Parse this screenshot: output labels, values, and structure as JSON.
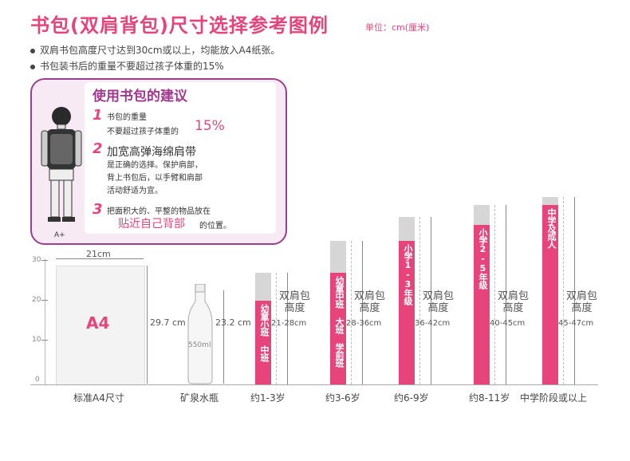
{
  "title": "书包(双肩背包)尺寸选择参考图例",
  "unit": "单位：cm(厘米)",
  "notes": [
    "双肩书包高度尺寸达到30cm或以上，均能放入A4纸张。",
    "书包装书后的重量不要超过孩子体重的15%"
  ],
  "tips": {
    "title": "使用书包的建议",
    "items": [
      {
        "num": "1",
        "line1": "书包的重量",
        "line2a": "不要超过孩子体重的",
        "line2b": "15%"
      },
      {
        "num": "2",
        "line1": "加宽高弹海绵肩带",
        "line2": "是正确的选择。保护肩部，",
        "line3": "背上书包后，以手臂和肩部",
        "line4": "活动舒适为宜。"
      },
      {
        "num": "3",
        "line1": "把面积大的、平整的物品放在",
        "line2a": "贴近自己背部",
        "line2b": "的位置。"
      }
    ],
    "figure_label": "A+"
  },
  "scale_labels": [
    "30",
    "20",
    "10",
    "0"
  ],
  "a4": {
    "label": "A4",
    "width": "21cm",
    "height": "29.7 cm",
    "caption": "标准A4尺寸"
  },
  "bottle": {
    "label": "550ml",
    "height": "23.2 cm",
    "caption": "矿泉水瓶"
  },
  "bags": [
    {
      "group": "幼童小班 中班",
      "heading": "双肩包\n高度",
      "range": "21-28cm",
      "age": "约1-3岁",
      "min_cm": 21,
      "max_cm": 28
    },
    {
      "group": "幼童中班 大班 学前班",
      "heading": "双肩包\n高度",
      "range": "28-36cm",
      "age": "约3-6岁",
      "min_cm": 28,
      "max_cm": 36
    },
    {
      "group": "小学1-3年级",
      "heading": "双肩包\n高度",
      "range": "36-42cm",
      "age": "约6-9岁",
      "min_cm": 36,
      "max_cm": 42
    },
    {
      "group": "小学2-5年级",
      "heading": "双肩包\n高度",
      "range": "40-45cm",
      "age": "约8-11岁",
      "min_cm": 40,
      "max_cm": 45
    },
    {
      "group": "中学及成人",
      "heading": "双肩包\n高度",
      "range": "45-47cm",
      "age": "中学阶段或以上",
      "min_cm": 45,
      "max_cm": 47
    }
  ]
}
